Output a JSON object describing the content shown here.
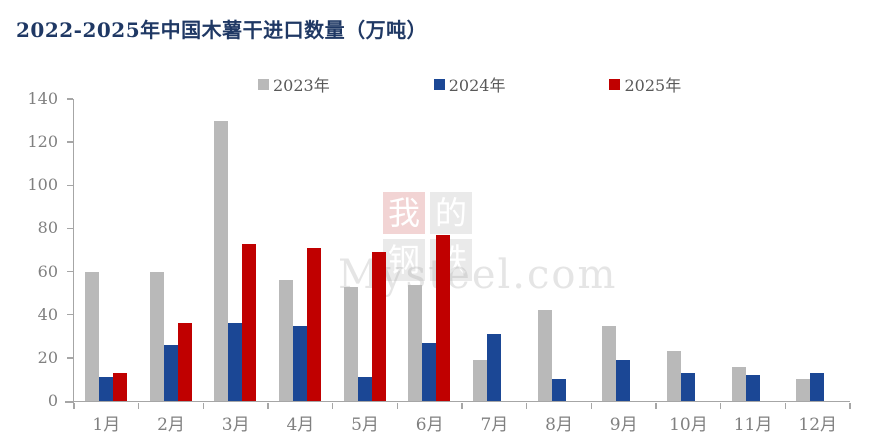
{
  "title": "2022-2025年中国木薯干进口数量（万吨）",
  "watermark": {
    "blocks": [
      "我",
      "的",
      "钢",
      "铁"
    ],
    "text": "Mysteel.com"
  },
  "colors": {
    "background": "#ffffff",
    "title": "#1f3864",
    "axis_line": "#a6a6a6",
    "tick_label": "#808080",
    "legend_text": "#595959"
  },
  "chart_data": {
    "type": "bar",
    "title": "2022-2025年中国木薯干进口数量（万吨）",
    "xlabel": "",
    "ylabel": "",
    "ylim": [
      0,
      140
    ],
    "yticks": [
      0,
      20,
      40,
      60,
      80,
      100,
      120,
      140
    ],
    "grid": false,
    "legend_position": "top",
    "categories": [
      "1月",
      "2月",
      "3月",
      "4月",
      "5月",
      "6月",
      "7月",
      "8月",
      "9月",
      "10月",
      "11月",
      "12月"
    ],
    "series": [
      {
        "name": "2023年",
        "color": "#b9b9b9",
        "values": [
          60,
          60,
          130,
          56,
          53,
          54,
          19,
          42,
          35,
          23,
          16,
          10
        ]
      },
      {
        "name": "2024年",
        "color": "#1b4795",
        "values": [
          11,
          26,
          36,
          35,
          11,
          27,
          31,
          10,
          19,
          13,
          12,
          13
        ]
      },
      {
        "name": "2025年",
        "color": "#c00000",
        "values": [
          13,
          36,
          73,
          71,
          69,
          77,
          null,
          null,
          null,
          null,
          null,
          null
        ]
      }
    ]
  }
}
